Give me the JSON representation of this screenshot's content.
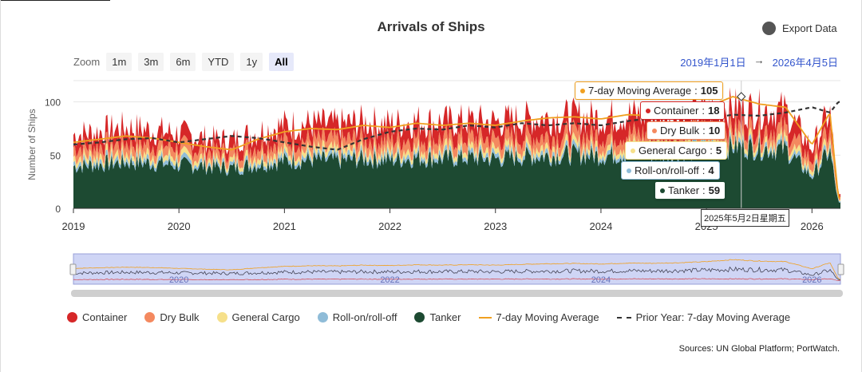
{
  "title": "Arrivals of Ships",
  "export_label": "Export Data",
  "zoom": {
    "label": "Zoom",
    "buttons": [
      "1m",
      "3m",
      "6m",
      "YTD",
      "1y",
      "All"
    ],
    "active": "All"
  },
  "range": {
    "from": "2019年1月1日",
    "arrow": "→",
    "to": "2026年4月5日"
  },
  "tooltip": {
    "date": "2025年5月2日星期五",
    "items": [
      {
        "label": "7-day Moving Average",
        "value": "105",
        "color": "#f0a020"
      },
      {
        "label": "Container",
        "value": "18",
        "color": "#d62728"
      },
      {
        "label": "Dry Bulk",
        "value": "10",
        "color": "#f4895f"
      },
      {
        "label": "General Cargo",
        "value": "5",
        "color": "#f6e08a"
      },
      {
        "label": "Roll-on/roll-off",
        "value": "4",
        "color": "#8fbcd8"
      },
      {
        "label": "Tanker",
        "value": "59",
        "color": "#1d4a32"
      }
    ]
  },
  "legend": [
    {
      "label": "Container",
      "color": "#d62728",
      "kind": "dot"
    },
    {
      "label": "Dry Bulk",
      "color": "#f4895f",
      "kind": "dot"
    },
    {
      "label": "General Cargo",
      "color": "#f6e08a",
      "kind": "dot"
    },
    {
      "label": "Roll-on/roll-off",
      "color": "#8fbcd8",
      "kind": "dot"
    },
    {
      "label": "Tanker",
      "color": "#1d4a32",
      "kind": "dot"
    },
    {
      "label": "7-day Moving Average",
      "color": "#f0a020",
      "kind": "line"
    },
    {
      "label": "Prior Year: 7-day Moving Average",
      "color": "#333333",
      "kind": "dash"
    }
  ],
  "source": "Sources: UN Global Platform; PortWatch.",
  "chart_data": {
    "type": "area",
    "stacked": true,
    "title": "Arrivals of Ships",
    "xlabel": "",
    "ylabel": "Number of Ships",
    "ylim": [
      0,
      120
    ],
    "yticks": [
      0,
      50,
      100
    ],
    "xlim": [
      2019.0,
      2026.27
    ],
    "xticks": [
      "2019",
      "2020",
      "2021",
      "2022",
      "2023",
      "2024",
      "2025",
      "2026"
    ],
    "x": [
      2019.0,
      2019.25,
      2019.5,
      2019.75,
      2020.0,
      2020.25,
      2020.5,
      2020.75,
      2021.0,
      2021.25,
      2021.5,
      2021.75,
      2022.0,
      2022.25,
      2022.5,
      2022.75,
      2023.0,
      2023.25,
      2023.5,
      2023.75,
      2024.0,
      2024.25,
      2024.5,
      2024.75,
      2025.0,
      2025.25,
      2025.5,
      2025.75,
      2026.0,
      2026.17,
      2026.25
    ],
    "series": [
      {
        "name": "Tanker",
        "values": [
          40,
          42,
          44,
          43,
          41,
          40,
          38,
          42,
          45,
          46,
          45,
          47,
          46,
          48,
          47,
          48,
          47,
          49,
          50,
          51,
          50,
          52,
          51,
          53,
          55,
          59,
          57,
          56,
          30,
          55,
          5
        ]
      },
      {
        "name": "Roll-on/roll-off",
        "values": [
          4,
          4,
          4,
          4,
          4,
          3,
          3,
          4,
          4,
          4,
          4,
          4,
          4,
          4,
          4,
          4,
          4,
          4,
          4,
          4,
          4,
          4,
          4,
          4,
          4,
          4,
          4,
          4,
          3,
          4,
          1
        ]
      },
      {
        "name": "General Cargo",
        "values": [
          5,
          5,
          5,
          5,
          5,
          4,
          4,
          5,
          5,
          5,
          5,
          5,
          5,
          5,
          5,
          5,
          5,
          5,
          5,
          5,
          5,
          5,
          5,
          5,
          5,
          5,
          5,
          5,
          4,
          5,
          1
        ]
      },
      {
        "name": "Dry Bulk",
        "values": [
          9,
          9,
          10,
          9,
          9,
          8,
          8,
          9,
          10,
          10,
          10,
          10,
          10,
          10,
          10,
          10,
          10,
          10,
          10,
          10,
          10,
          10,
          10,
          10,
          10,
          10,
          10,
          10,
          8,
          10,
          2
        ]
      },
      {
        "name": "Container",
        "values": [
          12,
          13,
          14,
          13,
          12,
          11,
          11,
          13,
          15,
          15,
          15,
          16,
          15,
          16,
          16,
          16,
          16,
          17,
          17,
          17,
          17,
          18,
          18,
          18,
          18,
          18,
          18,
          18,
          12,
          18,
          3
        ]
      }
    ],
    "moving_average": {
      "name": "7-day Moving Average",
      "values": [
        62,
        65,
        68,
        66,
        62,
        58,
        55,
        65,
        72,
        75,
        74,
        78,
        76,
        80,
        78,
        80,
        78,
        82,
        85,
        86,
        84,
        88,
        87,
        90,
        95,
        105,
        98,
        95,
        60,
        90,
        10
      ]
    },
    "prior_year_moving_average": {
      "name": "Prior Year: 7-day Moving Average",
      "values": [
        60,
        62,
        65,
        66,
        62,
        65,
        68,
        66,
        62,
        58,
        55,
        65,
        72,
        75,
        74,
        78,
        76,
        80,
        78,
        80,
        78,
        82,
        85,
        86,
        84,
        88,
        87,
        90,
        95,
        90,
        100
      ]
    },
    "highlight": {
      "x": 2025.33,
      "date": "2025年5月2日星期五",
      "moving_average": 105
    },
    "navigator_labels": [
      "2020",
      "2022",
      "2024",
      "2026"
    ]
  }
}
